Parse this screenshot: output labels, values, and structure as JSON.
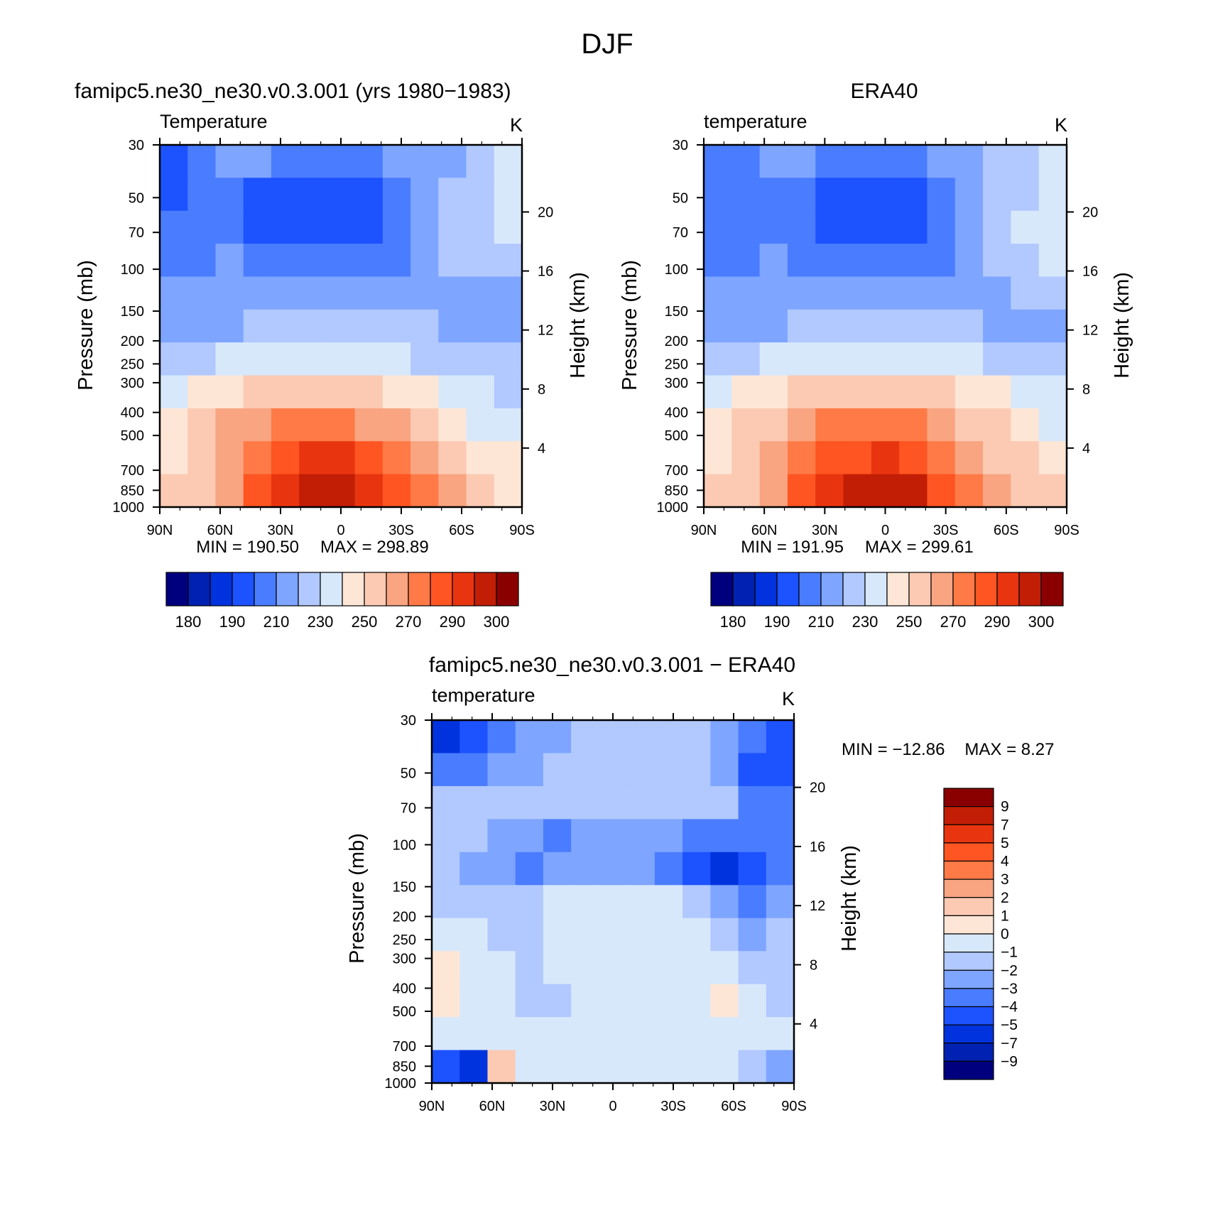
{
  "title": "DJF",
  "colors": {
    "abs_scale": [
      "#00007f",
      "#0021b1",
      "#0033dd",
      "#1c52ff",
      "#4a7cff",
      "#7ea5ff",
      "#b1c9ff",
      "#d8e8fb",
      "#fde6d6",
      "#fccab3",
      "#f9a582",
      "#ff7a46",
      "#ff5522",
      "#e8350f",
      "#c21e06",
      "#8a0000"
    ],
    "diff_scale": [
      "#00007f",
      "#0021b1",
      "#0033dd",
      "#1c52ff",
      "#4a7cff",
      "#7ea5ff",
      "#b1c9ff",
      "#d8e8fb",
      "#fde6d6",
      "#fccab3",
      "#f9a582",
      "#ff7a46",
      "#ff5522",
      "#e8350f",
      "#c21e06",
      "#8a0000"
    ]
  },
  "chart_data": [
    {
      "type": "heatmap",
      "title": "famipc5.ne30_ne30.v0.3.001 (yrs 1980−1983)",
      "subtitle_left": "Temperature",
      "units": "K",
      "ylabel": "Pressure (mb)",
      "y2label": "Height (km)",
      "x_ticks": [
        "90N",
        "60N",
        "30N",
        "0",
        "30S",
        "60S",
        "90S"
      ],
      "y_ticks": [
        "30",
        "50",
        "70",
        "100",
        "150",
        "200",
        "250",
        "300",
        "400",
        "500",
        "700",
        "850",
        "1000"
      ],
      "y2_ticks": [
        "20",
        "16",
        "12",
        "8",
        "4"
      ],
      "log_pressure_axis": true,
      "min_label": "MIN = 190.50",
      "max_label": "MAX = 298.89",
      "min": 190.5,
      "max": 298.89,
      "colorbar_labels": [
        "180",
        "190",
        "210",
        "230",
        "250",
        "270",
        "290",
        "300"
      ],
      "field": [
        [
          3,
          4,
          5,
          5,
          4,
          4,
          4,
          4,
          5,
          5,
          5,
          6,
          7
        ],
        [
          3,
          4,
          4,
          3,
          3,
          3,
          3,
          3,
          4,
          5,
          6,
          6,
          7
        ],
        [
          4,
          4,
          4,
          3,
          3,
          3,
          3,
          3,
          4,
          5,
          6,
          6,
          7
        ],
        [
          4,
          4,
          5,
          4,
          4,
          4,
          4,
          4,
          4,
          5,
          6,
          6,
          6
        ],
        [
          5,
          5,
          5,
          5,
          5,
          5,
          5,
          5,
          5,
          5,
          5,
          5,
          5
        ],
        [
          5,
          5,
          5,
          6,
          6,
          6,
          6,
          6,
          6,
          6,
          5,
          5,
          5
        ],
        [
          6,
          6,
          7,
          7,
          7,
          7,
          7,
          7,
          7,
          6,
          6,
          6,
          6
        ],
        [
          7,
          8,
          8,
          9,
          9,
          9,
          9,
          9,
          8,
          8,
          7,
          7,
          6
        ],
        [
          8,
          9,
          10,
          10,
          11,
          11,
          11,
          10,
          10,
          9,
          8,
          7,
          7
        ],
        [
          8,
          9,
          10,
          11,
          12,
          13,
          13,
          12,
          11,
          10,
          9,
          8,
          8
        ],
        [
          9,
          9,
          10,
          12,
          13,
          14,
          14,
          13,
          12,
          11,
          10,
          9,
          8
        ]
      ]
    },
    {
      "type": "heatmap",
      "title": "ERA40",
      "subtitle_left": "temperature",
      "units": "K",
      "ylabel": "Pressure (mb)",
      "y2label": "Height (km)",
      "x_ticks": [
        "90N",
        "60N",
        "30N",
        "0",
        "30S",
        "60S",
        "90S"
      ],
      "y_ticks": [
        "30",
        "50",
        "70",
        "100",
        "150",
        "200",
        "250",
        "300",
        "400",
        "500",
        "700",
        "850",
        "1000"
      ],
      "y2_ticks": [
        "20",
        "16",
        "12",
        "8",
        "4"
      ],
      "log_pressure_axis": true,
      "min_label": "MIN = 191.95",
      "max_label": "MAX = 299.61",
      "min": 191.95,
      "max": 299.61,
      "colorbar_labels": [
        "180",
        "190",
        "210",
        "230",
        "250",
        "270",
        "290",
        "300"
      ],
      "field": [
        [
          4,
          4,
          5,
          5,
          4,
          4,
          4,
          4,
          5,
          5,
          6,
          6,
          7
        ],
        [
          4,
          4,
          4,
          4,
          3,
          3,
          3,
          3,
          4,
          5,
          6,
          6,
          7
        ],
        [
          4,
          4,
          4,
          4,
          3,
          3,
          3,
          3,
          4,
          5,
          6,
          7,
          7
        ],
        [
          4,
          4,
          5,
          4,
          4,
          4,
          4,
          4,
          4,
          5,
          6,
          6,
          7
        ],
        [
          5,
          5,
          5,
          5,
          5,
          5,
          5,
          5,
          5,
          5,
          5,
          6,
          6
        ],
        [
          5,
          5,
          5,
          6,
          6,
          6,
          6,
          6,
          6,
          6,
          5,
          5,
          5
        ],
        [
          6,
          6,
          7,
          7,
          7,
          7,
          7,
          7,
          7,
          7,
          6,
          6,
          6
        ],
        [
          7,
          8,
          8,
          9,
          9,
          9,
          9,
          9,
          9,
          8,
          8,
          7,
          7
        ],
        [
          8,
          9,
          9,
          10,
          11,
          11,
          11,
          11,
          10,
          9,
          9,
          8,
          7
        ],
        [
          8,
          9,
          10,
          11,
          12,
          12,
          13,
          12,
          11,
          10,
          9,
          9,
          8
        ],
        [
          9,
          9,
          10,
          12,
          13,
          14,
          14,
          14,
          12,
          11,
          10,
          9,
          9
        ]
      ]
    },
    {
      "type": "heatmap",
      "title": "famipc5.ne30_ne30.v0.3.001 − ERA40",
      "subtitle_left": "temperature",
      "units": "K",
      "ylabel": "Pressure (mb)",
      "y2label": "Height (km)",
      "x_ticks": [
        "90N",
        "60N",
        "30N",
        "0",
        "30S",
        "60S",
        "90S"
      ],
      "y_ticks": [
        "30",
        "50",
        "70",
        "100",
        "150",
        "200",
        "250",
        "300",
        "400",
        "500",
        "700",
        "850",
        "1000"
      ],
      "y2_ticks": [
        "20",
        "16",
        "12",
        "8",
        "4"
      ],
      "log_pressure_axis": true,
      "min_label": "MIN = −12.86",
      "max_label": "MAX = 8.27",
      "min": -12.86,
      "max": 8.27,
      "colorbar_labels": [
        "9",
        "7",
        "5",
        "4",
        "3",
        "2",
        "1",
        "0",
        "−1",
        "−2",
        "−3",
        "−4",
        "−5",
        "−7",
        "−9"
      ],
      "field": [
        [
          2,
          3,
          4,
          5,
          5,
          6,
          6,
          6,
          6,
          6,
          5,
          4,
          3
        ],
        [
          4,
          4,
          5,
          5,
          6,
          6,
          6,
          6,
          6,
          6,
          5,
          3,
          3
        ],
        [
          6,
          6,
          6,
          6,
          6,
          6,
          6,
          6,
          6,
          6,
          6,
          4,
          4
        ],
        [
          6,
          6,
          5,
          5,
          4,
          5,
          5,
          5,
          5,
          4,
          4,
          4,
          4
        ],
        [
          6,
          5,
          5,
          4,
          5,
          5,
          5,
          5,
          4,
          3,
          2,
          3,
          4
        ],
        [
          6,
          6,
          6,
          6,
          7,
          7,
          7,
          7,
          7,
          6,
          5,
          4,
          5
        ],
        [
          7,
          7,
          6,
          6,
          7,
          7,
          7,
          7,
          7,
          7,
          6,
          5,
          6
        ],
        [
          8,
          7,
          7,
          6,
          7,
          7,
          7,
          7,
          7,
          7,
          7,
          6,
          6
        ],
        [
          8,
          7,
          7,
          6,
          6,
          7,
          7,
          7,
          7,
          7,
          8,
          7,
          6
        ],
        [
          7,
          7,
          7,
          7,
          7,
          7,
          7,
          7,
          7,
          7,
          7,
          7,
          7
        ],
        [
          3,
          2,
          9,
          7,
          7,
          7,
          7,
          7,
          7,
          7,
          7,
          6,
          5
        ]
      ]
    }
  ]
}
